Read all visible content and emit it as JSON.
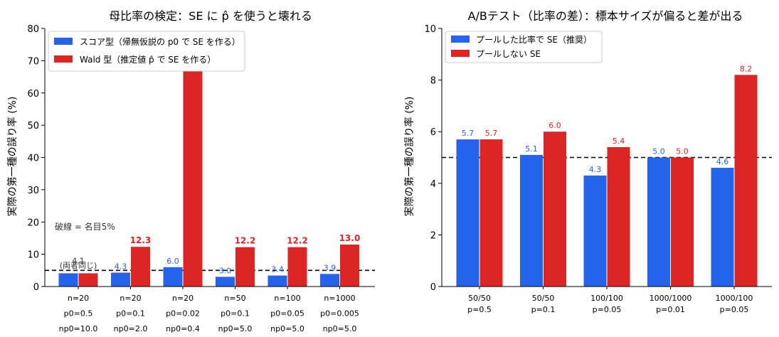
{
  "colors": {
    "score": "#2563eb",
    "wald": "#dc2626"
  },
  "chart_data": [
    {
      "type": "bar",
      "title": "母比率の検定：SE に p̂ を使うと壊れる",
      "ylabel": "実際の第一種の誤り率 (%)",
      "xlabel": "",
      "ylim": [
        0,
        80
      ],
      "yticks": [
        0,
        10,
        20,
        30,
        40,
        50,
        60,
        70,
        80
      ],
      "reference_line": 5,
      "categories": [
        [
          "n=20",
          "p0=0.5",
          "np0=10.0"
        ],
        [
          "n=20",
          "p0=0.1",
          "np0=2.0"
        ],
        [
          "n=20",
          "p0=0.02",
          "np0=0.4"
        ],
        [
          "n=50",
          "p0=0.1",
          "np0=5.0"
        ],
        [
          "n=100",
          "p0=0.05",
          "np0=5.0"
        ],
        [
          "n=1000",
          "p0=0.005",
          "np0=5.0"
        ]
      ],
      "series": [
        {
          "name": "スコア型（帰無仮説の p0 で SE を作る）",
          "values": [
            4.1,
            4.3,
            6.0,
            3.0,
            3.4,
            3.9
          ],
          "labels": [
            "4.1",
            "4.3",
            "6.0",
            "3.0",
            "3.4",
            "3.9"
          ]
        },
        {
          "name": "Wald 型（推定値 p̂ で SE を作る）",
          "values": [
            4.1,
            12.3,
            66.8,
            12.2,
            12.2,
            13.0
          ],
          "labels": [
            "",
            "12.3",
            "66.8",
            "12.2",
            "12.2",
            "13.0"
          ]
        }
      ],
      "annotations": [
        "破線 = 名目5%",
        "(両者同じ)"
      ],
      "legend": "top-left",
      "grid": false
    },
    {
      "type": "bar",
      "title": "A/Bテスト（比率の差）：標本サイズが偏ると差が出る",
      "ylabel": "実際の第一種の誤り率 (%)",
      "xlabel": "",
      "ylim": [
        0,
        10
      ],
      "yticks": [
        0,
        2,
        4,
        6,
        8,
        10
      ],
      "reference_line": 5,
      "categories": [
        [
          "50/50",
          "p=0.5"
        ],
        [
          "50/50",
          "p=0.1"
        ],
        [
          "100/100",
          "p=0.05"
        ],
        [
          "1000/1000",
          "p=0.01"
        ],
        [
          "1000/100",
          "p=0.05"
        ]
      ],
      "series": [
        {
          "name": "プールした比率で SE（推奨）",
          "values": [
            5.7,
            5.1,
            4.3,
            5.0,
            4.6
          ],
          "labels": [
            "5.7",
            "5.1",
            "4.3",
            "5.0",
            "4.6"
          ]
        },
        {
          "name": "プールしない SE",
          "values": [
            5.7,
            6.0,
            5.4,
            5.0,
            8.2
          ],
          "labels": [
            "5.7",
            "6.0",
            "5.4",
            "5.0",
            "8.2"
          ]
        }
      ],
      "legend": "top-left",
      "grid": false
    }
  ]
}
